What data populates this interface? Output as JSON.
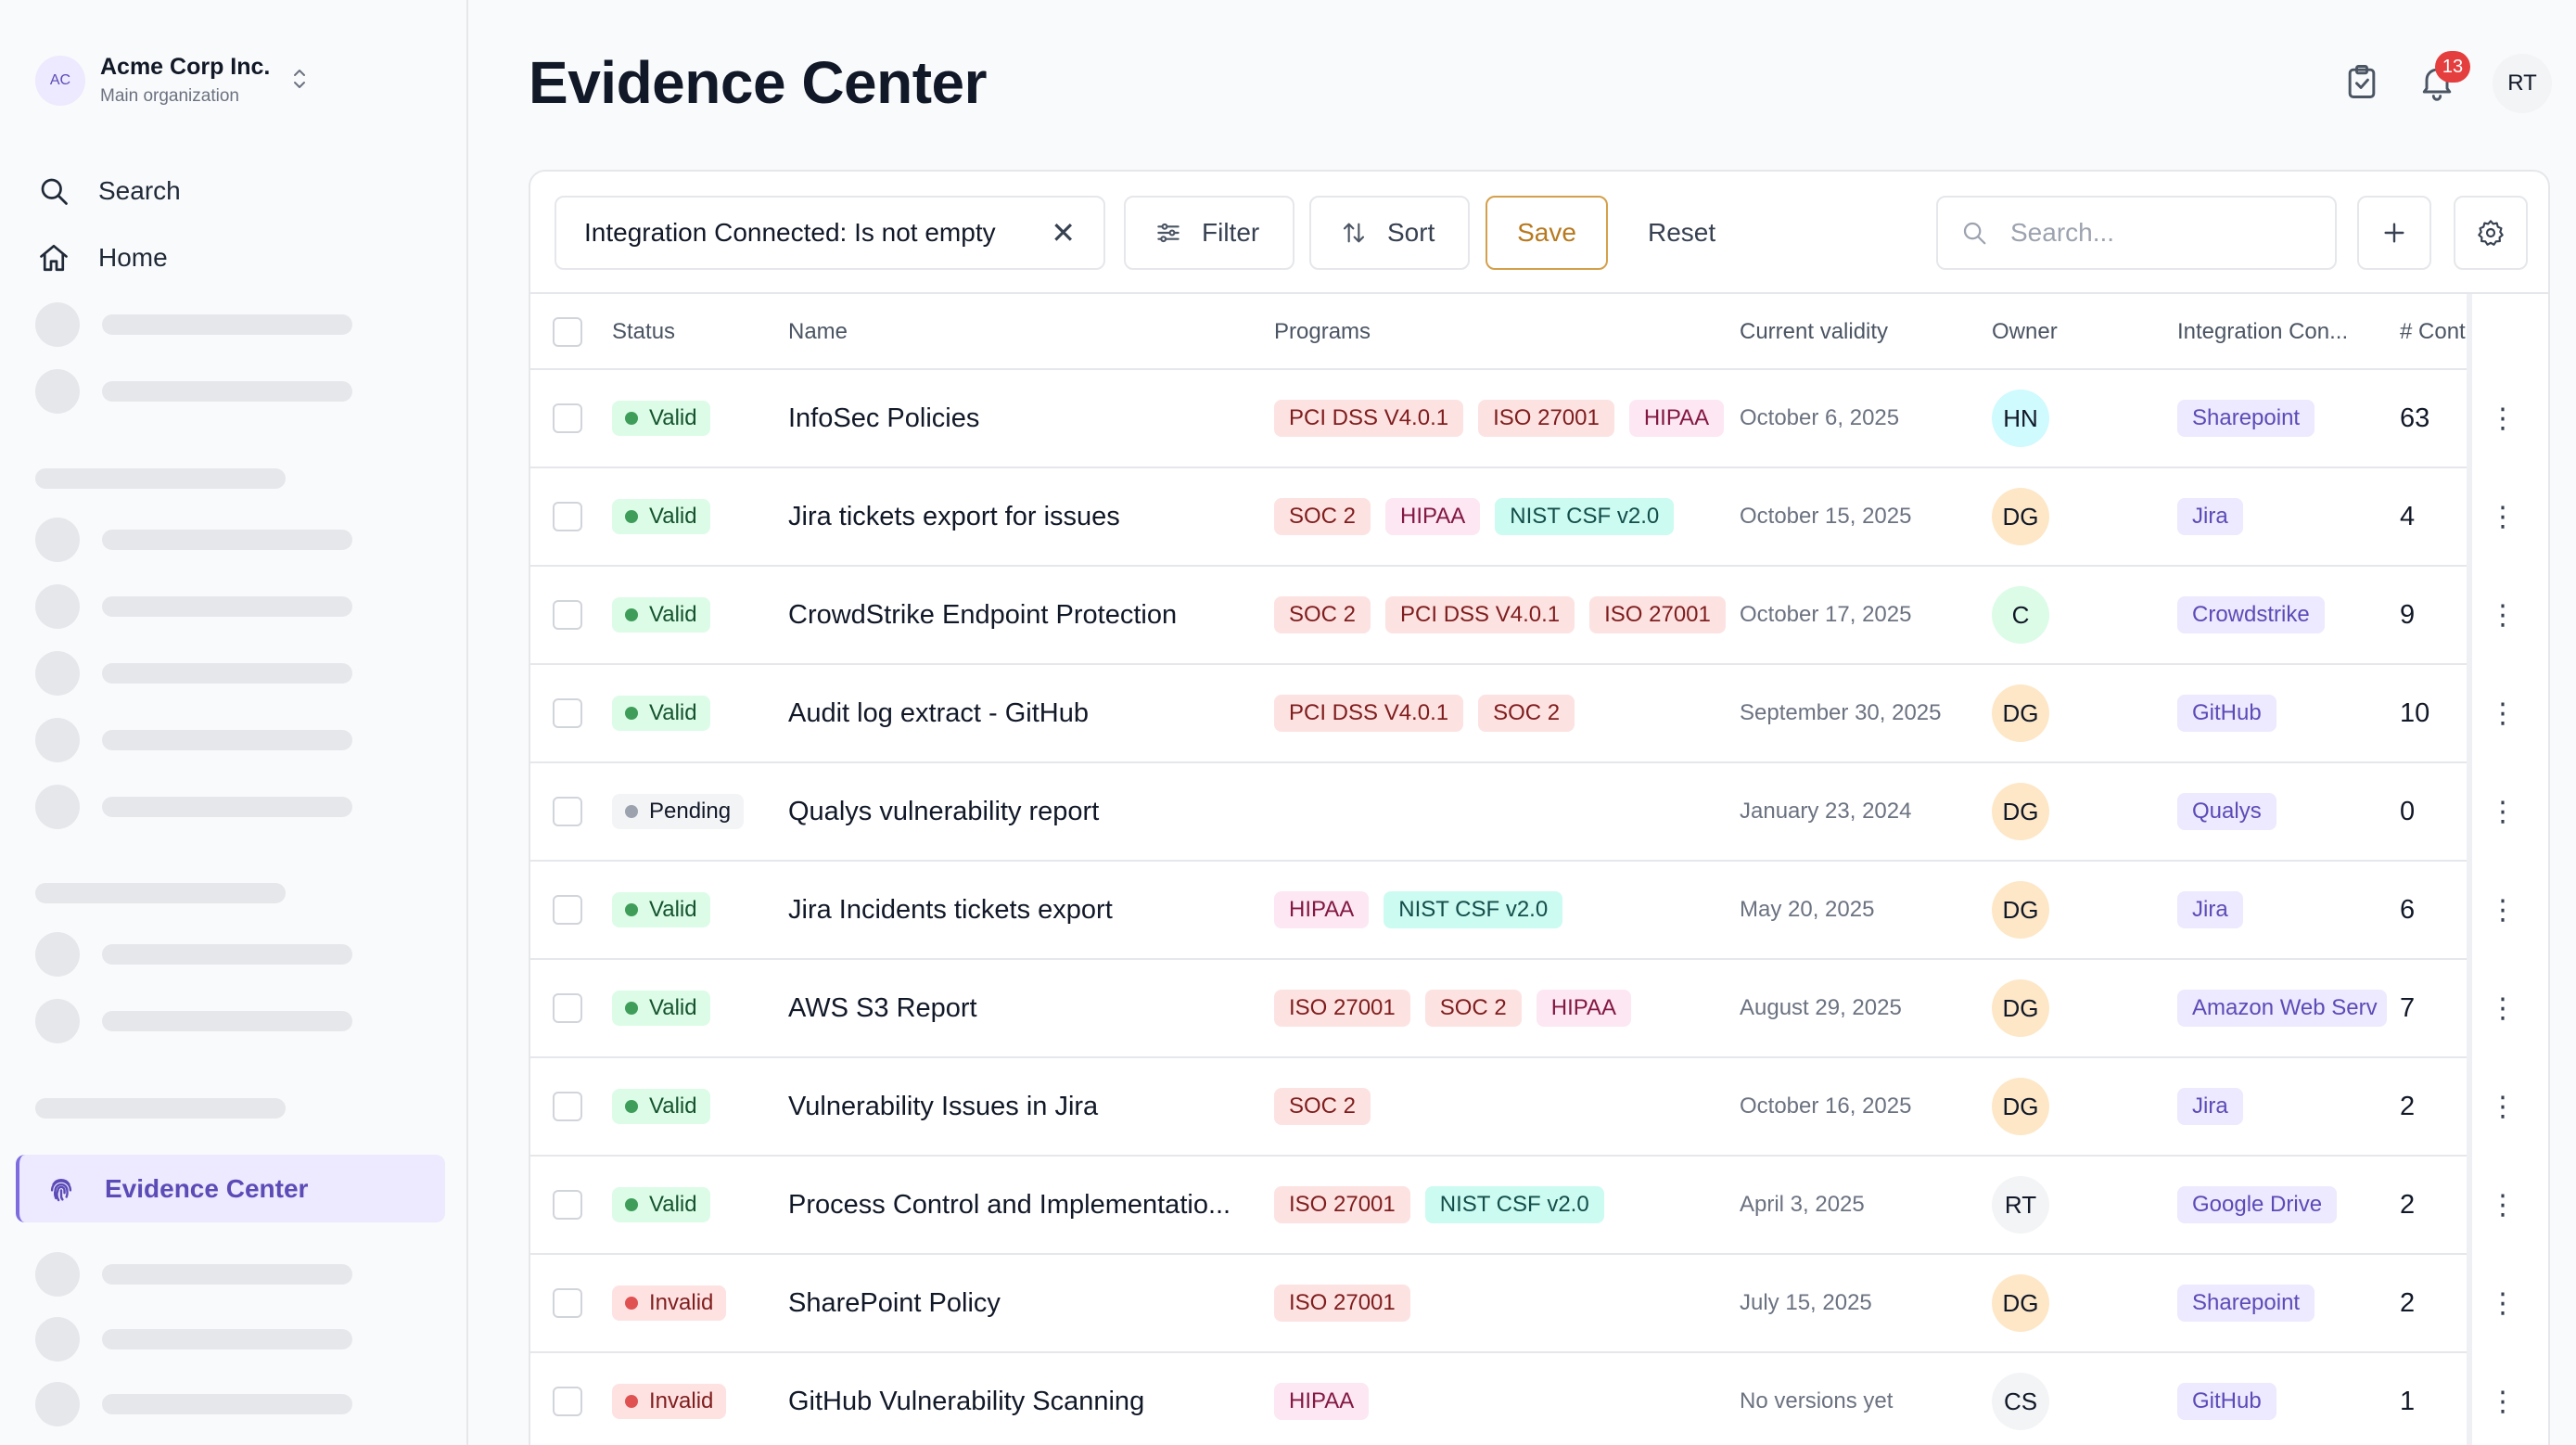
{
  "org": {
    "initials": "AC",
    "name": "Acme Corp Inc.",
    "subtitle": "Main organization"
  },
  "nav": {
    "search": "Search",
    "home": "Home",
    "evidence_center": "Evidence Center"
  },
  "header": {
    "title": "Evidence Center",
    "notification_count": "13",
    "user_initials": "RT"
  },
  "toolbar": {
    "filter_chip": "Integration Connected: Is not empty",
    "filter_chip_close": "✕",
    "filter_label": "Filter",
    "sort_label": "Sort",
    "save_label": "Save",
    "reset_label": "Reset",
    "search_placeholder": "Search..."
  },
  "table": {
    "columns": {
      "status": "Status",
      "name": "Name",
      "programs": "Programs",
      "validity": "Current validity",
      "owner": "Owner",
      "integration": "Integration Con...",
      "controls": "# Controls"
    },
    "rows": [
      {
        "status": "Valid",
        "name": "InfoSec Policies",
        "programs": [
          "PCI DSS V4.0.1",
          "ISO 27001",
          "HIPAA"
        ],
        "validity": "October 6, 2025",
        "owner": "HN",
        "integration": "Sharepoint",
        "controls": "63"
      },
      {
        "status": "Valid",
        "name": "Jira tickets export for issues",
        "programs": [
          "SOC 2",
          "HIPAA",
          "NIST CSF v2.0"
        ],
        "validity": "October 15, 2025",
        "owner": "DG",
        "integration": "Jira",
        "controls": "4"
      },
      {
        "status": "Valid",
        "name": "CrowdStrike Endpoint Protection",
        "programs": [
          "SOC 2",
          "PCI DSS V4.0.1",
          "ISO 27001"
        ],
        "validity": "October 17, 2025",
        "owner": "C",
        "integration": "Crowdstrike",
        "controls": "9"
      },
      {
        "status": "Valid",
        "name": "Audit log extract - GitHub",
        "programs": [
          "PCI DSS V4.0.1",
          "SOC 2"
        ],
        "validity": "September 30, 2025",
        "owner": "DG",
        "integration": "GitHub",
        "controls": "10"
      },
      {
        "status": "Pending",
        "name": "Qualys vulnerability report",
        "programs": [],
        "validity": "January 23, 2024",
        "owner": "DG",
        "integration": "Qualys",
        "controls": "0"
      },
      {
        "status": "Valid",
        "name": "Jira Incidents tickets export",
        "programs": [
          "HIPAA",
          "NIST CSF v2.0"
        ],
        "validity": "May 20, 2025",
        "owner": "DG",
        "integration": "Jira",
        "controls": "6"
      },
      {
        "status": "Valid",
        "name": "AWS S3 Report",
        "programs": [
          "ISO 27001",
          "SOC 2",
          "HIPAA"
        ],
        "validity": "August 29, 2025",
        "owner": "DG",
        "integration": "Amazon Web Serv",
        "controls": "7"
      },
      {
        "status": "Valid",
        "name": "Vulnerability Issues in Jira",
        "programs": [
          "SOC 2"
        ],
        "validity": "October 16, 2025",
        "owner": "DG",
        "integration": "Jira",
        "controls": "2"
      },
      {
        "status": "Valid",
        "name": "Process Control and Implementatio...",
        "programs": [
          "ISO 27001",
          "NIST CSF v2.0"
        ],
        "validity": "April 3, 2025",
        "owner": "RT",
        "integration": "Google Drive",
        "controls": "2"
      },
      {
        "status": "Invalid",
        "name": "SharePoint Policy",
        "programs": [
          "ISO 27001"
        ],
        "validity": "July 15, 2025",
        "owner": "DG",
        "integration": "Sharepoint",
        "controls": "2"
      },
      {
        "status": "Invalid",
        "name": "GitHub Vulnerability Scanning",
        "programs": [
          "HIPAA"
        ],
        "validity": "No versions yet",
        "owner": "CS",
        "integration": "GitHub",
        "controls": "1"
      }
    ]
  },
  "colors": {
    "accent": "#7c6ce0",
    "save_border": "#d4a04b",
    "badge_red": "#e53e3e"
  }
}
